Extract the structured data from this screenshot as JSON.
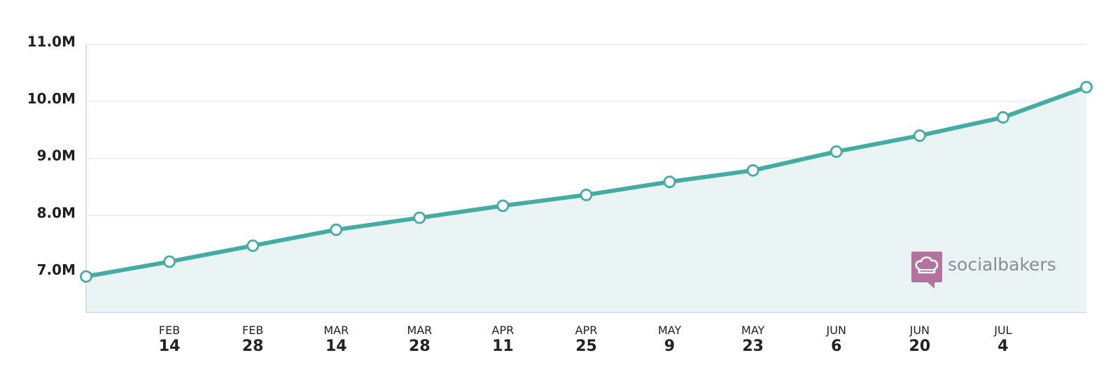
{
  "brand": {
    "name": "socialbakers",
    "icon": "chef-hat-speech-bubble-icon",
    "color": "#b4739f"
  },
  "colors": {
    "line": "#45aca4",
    "area": "#eaf4f5",
    "grid": "#e3e8ec",
    "axis": "#c9d8e4"
  },
  "chart_data": {
    "type": "area",
    "title": "",
    "xlabel": "",
    "ylabel": "",
    "ylim": [
      6300000,
      11000000
    ],
    "y_ticks": [
      7000000,
      8000000,
      9000000,
      10000000,
      11000000
    ],
    "y_tick_labels": [
      "7.0M",
      "8.0M",
      "9.0M",
      "10.0M",
      "11.0M"
    ],
    "x_tick_labels": [
      {
        "month": "FEB",
        "day": "14"
      },
      {
        "month": "FEB",
        "day": "28"
      },
      {
        "month": "MAR",
        "day": "14"
      },
      {
        "month": "MAR",
        "day": "28"
      },
      {
        "month": "APR",
        "day": "11"
      },
      {
        "month": "APR",
        "day": "25"
      },
      {
        "month": "MAY",
        "day": "9"
      },
      {
        "month": "MAY",
        "day": "23"
      },
      {
        "month": "JUN",
        "day": "6"
      },
      {
        "month": "JUN",
        "day": "20"
      },
      {
        "month": "JUL",
        "day": "4"
      }
    ],
    "x": [
      "Jan 31",
      "Feb 14",
      "Feb 28",
      "Mar 14",
      "Mar 28",
      "Apr 11",
      "Apr 25",
      "May 9",
      "May 23",
      "Jun 6",
      "Jun 20",
      "Jul 4",
      "Jul 18"
    ],
    "values": [
      6930000,
      7190000,
      7470000,
      7750000,
      7960000,
      8170000,
      8360000,
      8590000,
      8790000,
      9120000,
      9400000,
      9720000,
      10250000
    ],
    "grid": true,
    "legend": "none"
  }
}
